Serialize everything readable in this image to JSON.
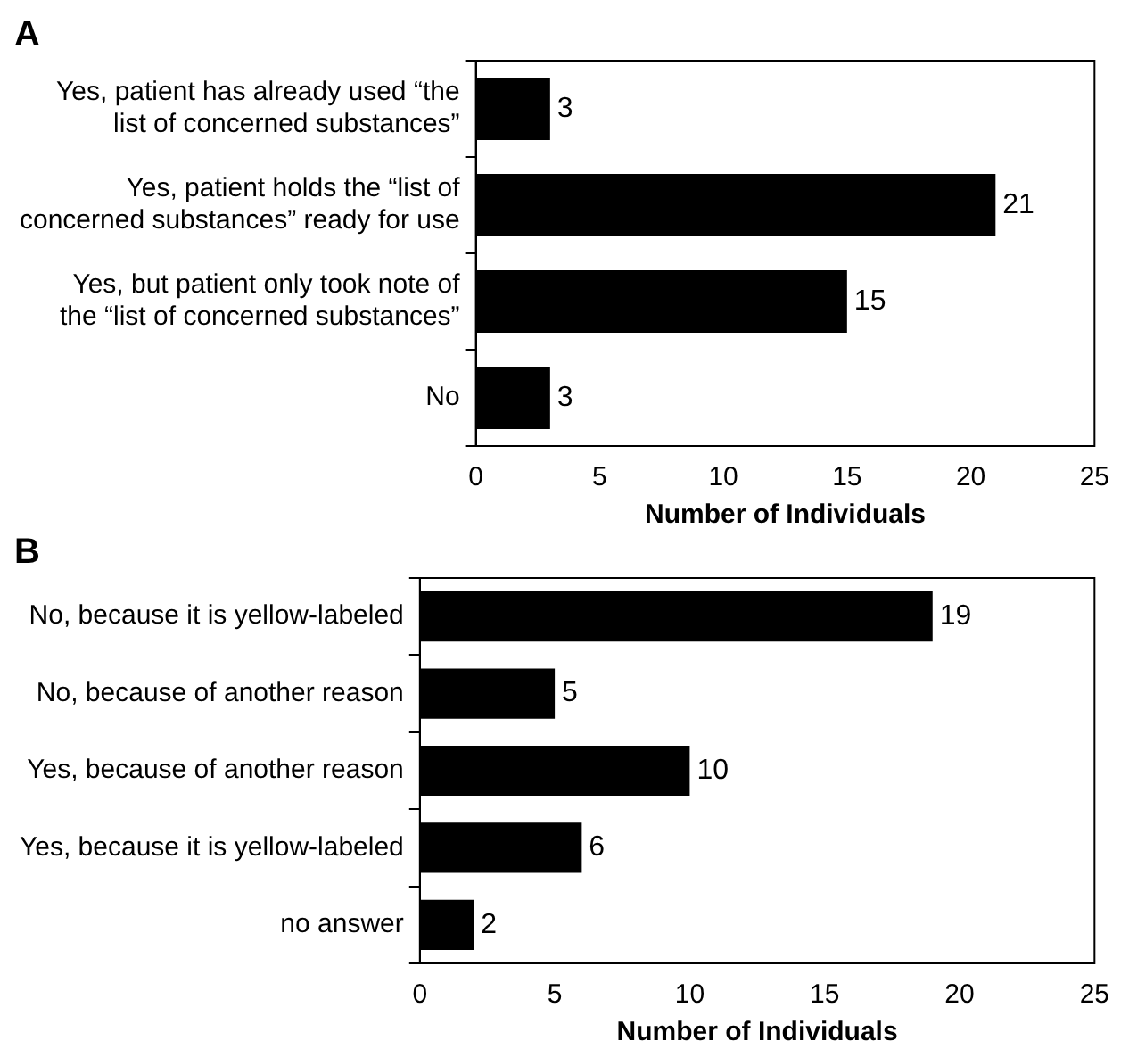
{
  "chart_data": [
    {
      "type": "bar",
      "title": "A",
      "orientation": "horizontal",
      "categories": [
        "Yes, patient has already used “the list of concerned substances”",
        "Yes, patient holds the “list of concerned substances” ready for use",
        "Yes, but patient only took note of the “list of concerned substances”",
        "No"
      ],
      "values": [
        3,
        21,
        15,
        3
      ],
      "color": "#000000",
      "xlim": [
        0,
        25
      ],
      "xticks": [
        0,
        5,
        10,
        15,
        20,
        25
      ],
      "xlabel": "Number of Individuals",
      "data_labels": true,
      "grid": false,
      "legend": false
    },
    {
      "type": "bar",
      "title": "B",
      "orientation": "horizontal",
      "categories": [
        "No, because it is yellow-labeled",
        "No, because of another reason",
        "Yes, because of another reason",
        "Yes, because it is yellow-labeled",
        "no answer"
      ],
      "values": [
        19,
        5,
        10,
        6,
        2
      ],
      "color": "#000000",
      "xlim": [
        0,
        25
      ],
      "xticks": [
        0,
        5,
        10,
        15,
        20,
        25
      ],
      "xlabel": "Number of Individuals",
      "data_labels": true,
      "grid": false,
      "legend": false
    }
  ]
}
